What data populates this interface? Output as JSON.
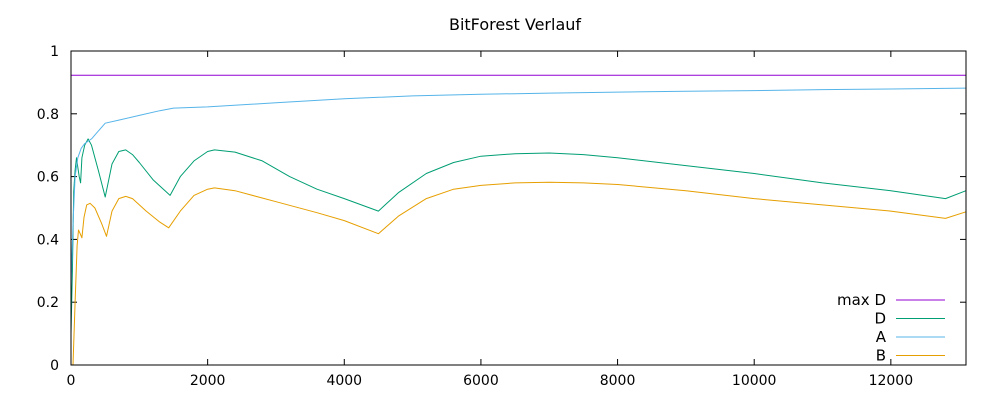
{
  "chart_data": {
    "type": "line",
    "title": "BitForest Verlauf",
    "xlabel": "",
    "ylabel": "",
    "xlim": [
      0,
      13100
    ],
    "ylim": [
      0,
      1
    ],
    "x_ticks": [
      0,
      2000,
      4000,
      6000,
      8000,
      10000,
      12000
    ],
    "y_ticks": [
      0,
      0.2,
      0.4,
      0.6,
      0.8,
      1
    ],
    "x_tick_labels": [
      "0",
      "2000",
      "4000",
      "6000",
      "8000",
      "10000",
      "12000"
    ],
    "y_tick_labels": [
      "0",
      "0.2",
      "0.4",
      "0.6",
      "0.8",
      "1"
    ],
    "grid": false,
    "legend_position": "bottom-right",
    "series": [
      {
        "name": "max D",
        "color": "#9400d3",
        "points": [
          [
            0,
            0.923
          ],
          [
            13100,
            0.923
          ]
        ]
      },
      {
        "name": "D",
        "color": "#009e73",
        "points": [
          [
            0,
            0.1
          ],
          [
            20,
            0.3
          ],
          [
            40,
            0.55
          ],
          [
            60,
            0.62
          ],
          [
            80,
            0.66
          ],
          [
            100,
            0.63
          ],
          [
            120,
            0.6
          ],
          [
            140,
            0.58
          ],
          [
            160,
            0.66
          ],
          [
            180,
            0.68
          ],
          [
            200,
            0.7
          ],
          [
            250,
            0.72
          ],
          [
            300,
            0.7
          ],
          [
            400,
            0.62
          ],
          [
            500,
            0.535
          ],
          [
            600,
            0.64
          ],
          [
            700,
            0.68
          ],
          [
            800,
            0.685
          ],
          [
            900,
            0.67
          ],
          [
            1000,
            0.645
          ],
          [
            1200,
            0.59
          ],
          [
            1450,
            0.54
          ],
          [
            1600,
            0.6
          ],
          [
            1800,
            0.65
          ],
          [
            2000,
            0.68
          ],
          [
            2100,
            0.685
          ],
          [
            2400,
            0.678
          ],
          [
            2800,
            0.65
          ],
          [
            3200,
            0.6
          ],
          [
            3600,
            0.56
          ],
          [
            4000,
            0.53
          ],
          [
            4500,
            0.49
          ],
          [
            4800,
            0.55
          ],
          [
            5200,
            0.61
          ],
          [
            5600,
            0.645
          ],
          [
            6000,
            0.665
          ],
          [
            6500,
            0.673
          ],
          [
            7000,
            0.675
          ],
          [
            7500,
            0.67
          ],
          [
            8000,
            0.66
          ],
          [
            9000,
            0.635
          ],
          [
            10000,
            0.61
          ],
          [
            11000,
            0.58
          ],
          [
            12000,
            0.555
          ],
          [
            12800,
            0.53
          ],
          [
            13100,
            0.555
          ]
        ]
      },
      {
        "name": "A",
        "color": "#56b4e9",
        "points": [
          [
            0,
            0.25
          ],
          [
            30,
            0.45
          ],
          [
            60,
            0.6
          ],
          [
            100,
            0.66
          ],
          [
            150,
            0.69
          ],
          [
            200,
            0.705
          ],
          [
            300,
            0.72
          ],
          [
            400,
            0.745
          ],
          [
            500,
            0.77
          ],
          [
            700,
            0.78
          ],
          [
            1000,
            0.795
          ],
          [
            1300,
            0.81
          ],
          [
            1500,
            0.818
          ],
          [
            2000,
            0.822
          ],
          [
            3000,
            0.835
          ],
          [
            4000,
            0.848
          ],
          [
            5000,
            0.857
          ],
          [
            6000,
            0.862
          ],
          [
            7000,
            0.866
          ],
          [
            8000,
            0.869
          ],
          [
            9000,
            0.872
          ],
          [
            10000,
            0.874
          ],
          [
            11000,
            0.877
          ],
          [
            12000,
            0.879
          ],
          [
            13100,
            0.882
          ]
        ]
      },
      {
        "name": "B",
        "color": "#e69f00",
        "points": [
          [
            30,
            0.0
          ],
          [
            60,
            0.2
          ],
          [
            90,
            0.38
          ],
          [
            110,
            0.43
          ],
          [
            130,
            0.42
          ],
          [
            160,
            0.405
          ],
          [
            190,
            0.47
          ],
          [
            230,
            0.51
          ],
          [
            280,
            0.515
          ],
          [
            350,
            0.5
          ],
          [
            450,
            0.45
          ],
          [
            520,
            0.41
          ],
          [
            600,
            0.49
          ],
          [
            700,
            0.53
          ],
          [
            800,
            0.537
          ],
          [
            900,
            0.53
          ],
          [
            1100,
            0.49
          ],
          [
            1300,
            0.455
          ],
          [
            1430,
            0.437
          ],
          [
            1600,
            0.49
          ],
          [
            1800,
            0.54
          ],
          [
            2000,
            0.56
          ],
          [
            2100,
            0.564
          ],
          [
            2400,
            0.555
          ],
          [
            3000,
            0.52
          ],
          [
            3600,
            0.485
          ],
          [
            4000,
            0.46
          ],
          [
            4500,
            0.418
          ],
          [
            4800,
            0.475
          ],
          [
            5200,
            0.53
          ],
          [
            5600,
            0.56
          ],
          [
            6000,
            0.572
          ],
          [
            6500,
            0.58
          ],
          [
            7000,
            0.582
          ],
          [
            7500,
            0.58
          ],
          [
            8000,
            0.575
          ],
          [
            9000,
            0.555
          ],
          [
            10000,
            0.53
          ],
          [
            11000,
            0.51
          ],
          [
            12000,
            0.49
          ],
          [
            12800,
            0.467
          ],
          [
            13100,
            0.488
          ]
        ]
      }
    ]
  }
}
